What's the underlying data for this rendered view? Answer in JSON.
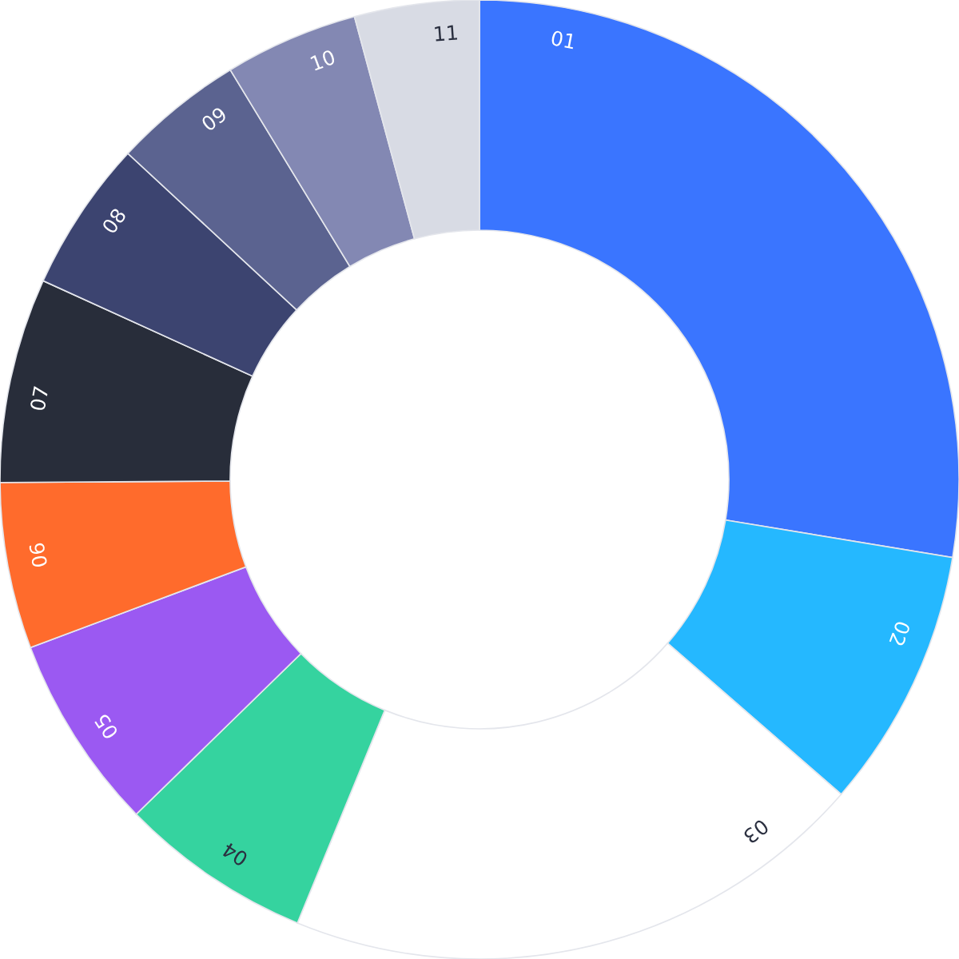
{
  "chart_data": {
    "type": "donut",
    "categories": [
      "01",
      "02",
      "03",
      "04",
      "05",
      "06",
      "07",
      "08",
      "09",
      "10",
      "11"
    ],
    "values": [
      27.6,
      8.8,
      19.8,
      6.5,
      6.6,
      5.6,
      6.9,
      5.1,
      4.4,
      4.5,
      4.2
    ],
    "colors": [
      "#3a75ff",
      "#25b8ff",
      "#ffffff",
      "#35d39f",
      "#9b59f2",
      "#ff6b2c",
      "#282d3a",
      "#3c4470",
      "#5b6390",
      "#8388b3",
      "#d8dbe4"
    ]
  }
}
